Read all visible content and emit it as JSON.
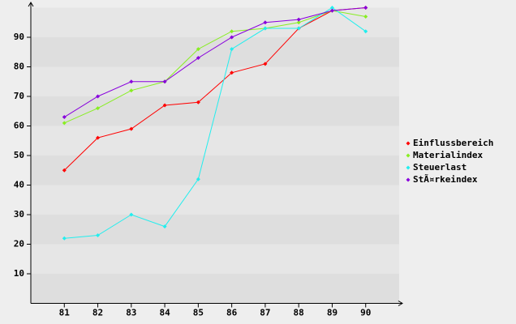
{
  "chart_data": {
    "type": "line",
    "categories": [
      "81",
      "82",
      "83",
      "84",
      "85",
      "86",
      "87",
      "88",
      "89",
      "90"
    ],
    "series": [
      {
        "name": "Einflussbereich",
        "color": "#ff0000",
        "values": [
          45,
          56,
          59,
          67,
          68,
          78,
          81,
          93,
          99,
          100
        ]
      },
      {
        "name": "Materialindex",
        "color": "#88ee22",
        "values": [
          61,
          66,
          72,
          75,
          86,
          92,
          93,
          95,
          99,
          97
        ]
      },
      {
        "name": "Steuerlast",
        "color": "#22eeee",
        "values": [
          22,
          23,
          30,
          26,
          42,
          86,
          93,
          93,
          100,
          92
        ]
      },
      {
        "name": "StÃ¤rkeindex",
        "color": "#8800dd",
        "values": [
          63,
          70,
          75,
          75,
          83,
          90,
          95,
          96,
          99,
          100
        ]
      }
    ],
    "ylim": [
      0,
      100
    ],
    "yticks": [
      10,
      20,
      30,
      40,
      50,
      60,
      70,
      80,
      90
    ],
    "grid": true,
    "legend": "right"
  }
}
